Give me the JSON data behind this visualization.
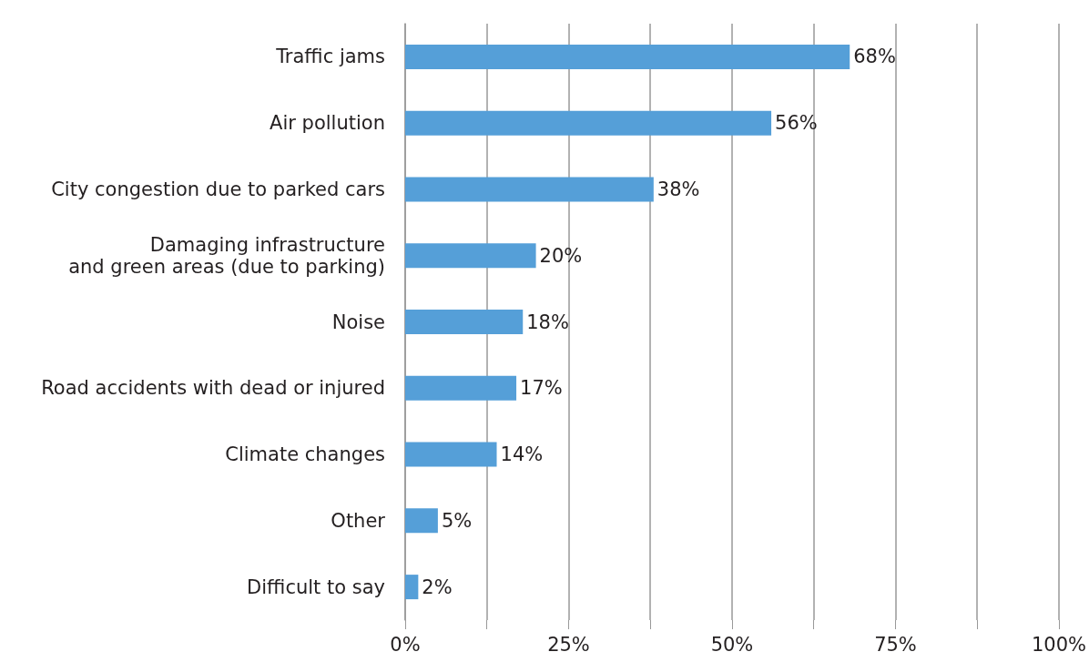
{
  "chart_data": {
    "type": "bar",
    "orientation": "horizontal",
    "categories": [
      "Traffic jams",
      "Air pollution",
      "City congestion due to parked cars",
      "Damaging infrastructure\nand green areas (due to parking)",
      "Noise",
      "Road accidents with dead or injured",
      "Climate changes",
      "Other",
      "Difficult to say"
    ],
    "values": [
      68,
      56,
      38,
      20,
      18,
      17,
      14,
      5,
      2
    ],
    "value_labels": [
      "68%",
      "56%",
      "38%",
      "20%",
      "18%",
      "17%",
      "14%",
      "5%",
      "2%"
    ],
    "color": "#559fd8",
    "xlim": [
      0,
      100
    ],
    "xticks": [
      {
        "value": 0,
        "label": "0%"
      },
      {
        "value": 12.5,
        "label": null
      },
      {
        "value": 25,
        "label": "25%"
      },
      {
        "value": 37.5,
        "label": null
      },
      {
        "value": 50,
        "label": "50%"
      },
      {
        "value": 62.5,
        "label": null
      },
      {
        "value": 75,
        "label": "75%"
      },
      {
        "value": 87.5,
        "label": null
      },
      {
        "value": 100,
        "label": "100%"
      }
    ],
    "grid": "x"
  }
}
